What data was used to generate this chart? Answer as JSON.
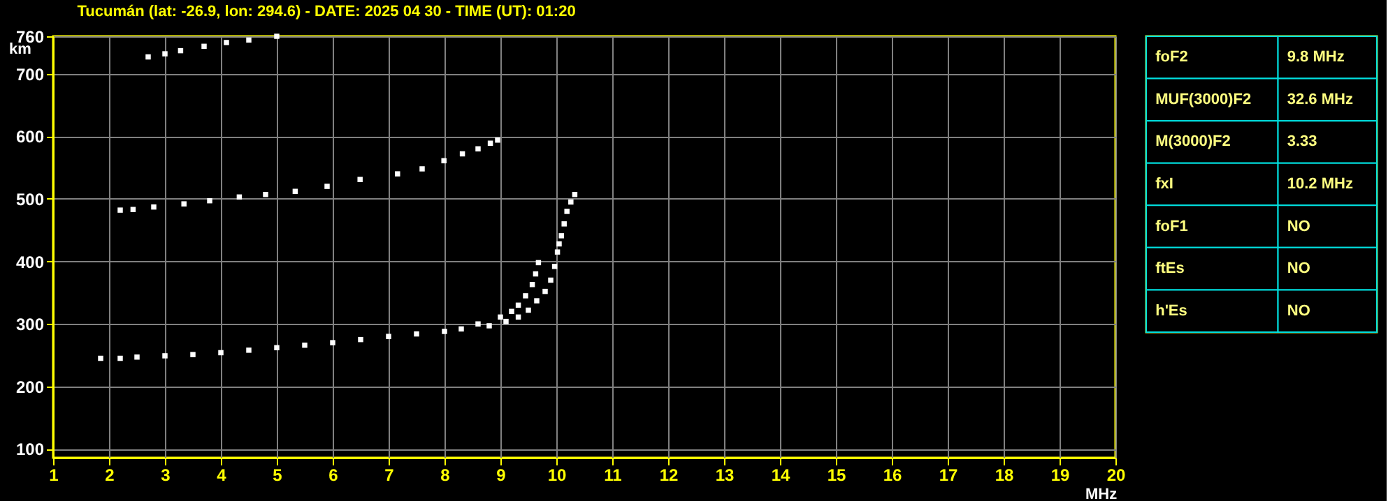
{
  "chart_data": [
    {
      "type": "scatter",
      "title": "Tucumán (lat: -26.9, lon: 294.6) - DATE: 2025 04 30 - TIME (UT): 01:20",
      "xlabel": "MHz",
      "ylabel": "km",
      "xlim": [
        1,
        20
      ],
      "ylim": [
        86,
        760
      ],
      "xticks": [
        1,
        2,
        3,
        4,
        5,
        6,
        7,
        8,
        9,
        10,
        11,
        12,
        13,
        14,
        15,
        16,
        17,
        18,
        19,
        20
      ],
      "yticks": [
        100,
        200,
        300,
        400,
        500,
        600,
        700,
        760
      ],
      "grid": true,
      "marker": "square",
      "series": [
        {
          "color": "#ffffff",
          "x": [
            1.85,
            2.2,
            2.5,
            3,
            3.5,
            4,
            4.5,
            5,
            5.5,
            6,
            6.5,
            7,
            7.5,
            8,
            8.3,
            8.6,
            9,
            9.2,
            9.32,
            9.45,
            9.57,
            9.63,
            9.68
          ],
          "values": [
            245,
            245,
            247,
            249,
            251,
            254,
            258,
            262,
            266,
            270,
            275,
            280,
            284,
            288,
            292,
            300,
            311,
            320,
            330,
            345,
            363,
            380,
            398
          ]
        },
        {
          "color": "#ffffff",
          "x": [
            8.8,
            9.1,
            9.32,
            9.5,
            9.65,
            9.8,
            9.9,
            9.97,
            10.02,
            10.05,
            10.09,
            10.14,
            10.19,
            10.26,
            10.33
          ],
          "values": [
            297,
            304,
            311,
            322,
            337,
            352,
            370,
            392,
            415,
            428,
            441,
            460,
            480,
            495,
            507
          ]
        },
        {
          "color": "#ffffff",
          "x": [
            2.2,
            2.43,
            2.8,
            3.34,
            3.8,
            4.33,
            4.8,
            5.33,
            5.9,
            6.49,
            7.16,
            7.6,
            7.99,
            8.32,
            8.6,
            8.82,
            8.95
          ],
          "values": [
            482,
            483,
            487,
            492,
            497,
            503,
            507,
            512,
            520,
            531,
            540,
            548,
            561,
            572,
            580,
            589,
            594
          ]
        },
        {
          "color": "#ffffff",
          "x": [
            2.7,
            3.0,
            3.28,
            3.7,
            4.1,
            4.5,
            5.0
          ],
          "values": [
            727,
            732,
            737,
            744,
            750,
            754,
            760
          ]
        }
      ]
    },
    {
      "type": "other",
      "annotations": [
        "foF2",
        "9.8 MHz",
        "MUF(3000)F2",
        "32.6 MHz",
        "M(3000)F2",
        "3.33",
        "fxI",
        "10.2 MHz",
        "foF1",
        "NO",
        "ftEs",
        "NO",
        "h'Es",
        "NO"
      ]
    }
  ]
}
